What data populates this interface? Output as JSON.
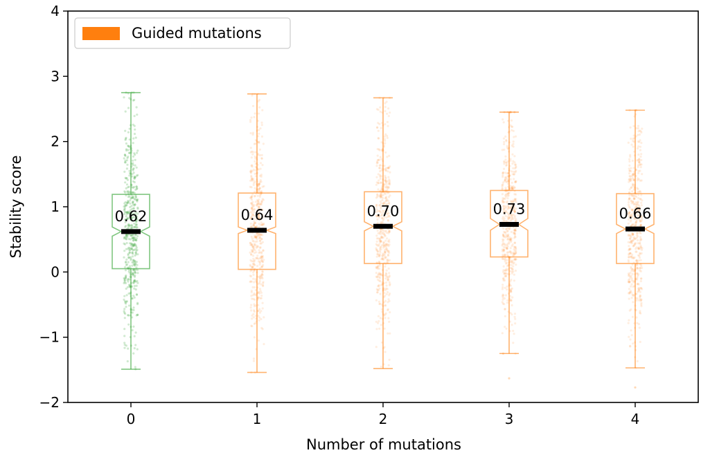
{
  "chart_data": {
    "type": "box",
    "title": "",
    "xlabel": "Number of mutations",
    "ylabel": "Stability score",
    "ylim": [
      -2,
      4
    ],
    "yticks": [
      "−2",
      "−1",
      "0",
      "1",
      "2",
      "3",
      "4"
    ],
    "ytick_values": [
      -2,
      -1,
      0,
      1,
      2,
      3,
      4
    ],
    "categories": [
      "0",
      "1",
      "2",
      "3",
      "4"
    ],
    "legend": {
      "label": "Guided mutations",
      "color": "#ff7f0e",
      "placement": "top-left"
    },
    "colors": {
      "baseline": "#2ca02c",
      "guided": "#ff7f0e",
      "median": "#000000"
    },
    "boxes": [
      {
        "category": "0",
        "color_key": "baseline",
        "whisker_low": -1.49,
        "q1": 0.05,
        "median": 0.62,
        "q3": 1.19,
        "whisker_high": 2.75,
        "notch_low": 0.55,
        "notch_high": 0.69,
        "median_label": "0.62"
      },
      {
        "category": "1",
        "color_key": "guided",
        "whisker_low": -1.54,
        "q1": 0.04,
        "median": 0.64,
        "q3": 1.21,
        "whisker_high": 2.73,
        "notch_low": 0.59,
        "notch_high": 0.69,
        "median_label": "0.64"
      },
      {
        "category": "2",
        "color_key": "guided",
        "whisker_low": -1.48,
        "q1": 0.13,
        "median": 0.7,
        "q3": 1.23,
        "whisker_high": 2.67,
        "notch_low": 0.63,
        "notch_high": 0.77,
        "median_label": "0.70"
      },
      {
        "category": "3",
        "color_key": "guided",
        "whisker_low": -1.25,
        "q1": 0.23,
        "median": 0.73,
        "q3": 1.25,
        "whisker_high": 2.45,
        "notch_low": 0.64,
        "notch_high": 0.82,
        "median_label": "0.73"
      },
      {
        "category": "4",
        "color_key": "guided",
        "whisker_low": -1.47,
        "q1": 0.13,
        "median": 0.66,
        "q3": 1.2,
        "whisker_high": 2.48,
        "notch_low": 0.59,
        "notch_high": 0.73,
        "median_label": "0.66"
      }
    ],
    "points_per_category": 500,
    "outliers": [
      {
        "category": "3",
        "y": -1.63
      },
      {
        "category": "4",
        "y": -1.77
      }
    ],
    "grid": false
  }
}
